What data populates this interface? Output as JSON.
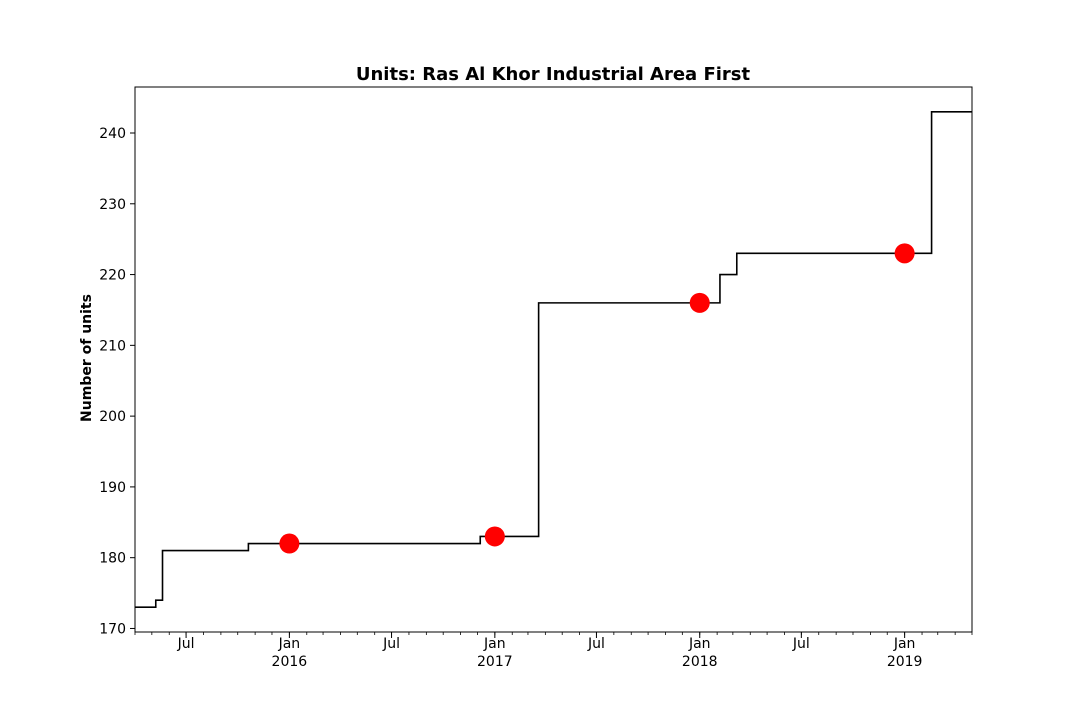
{
  "chart_data": {
    "type": "line",
    "title": "Units: Ras Al Khor Industrial Area First",
    "xlabel": "",
    "ylabel": "Number of units",
    "grid": false,
    "legend": "none",
    "xlim": [
      "2015-04-01",
      "2019-05-01"
    ],
    "ylim": [
      169.5,
      246.5
    ],
    "y_ticks": [
      170,
      180,
      190,
      200,
      210,
      220,
      230,
      240
    ],
    "x_ticks": [
      {
        "date": "2015-07-01",
        "label": "Jul",
        "sublabel": ""
      },
      {
        "date": "2016-01-01",
        "label": "Jan",
        "sublabel": "2016"
      },
      {
        "date": "2016-07-01",
        "label": "Jul",
        "sublabel": ""
      },
      {
        "date": "2017-01-01",
        "label": "Jan",
        "sublabel": "2017"
      },
      {
        "date": "2017-07-01",
        "label": "Jul",
        "sublabel": ""
      },
      {
        "date": "2018-01-01",
        "label": "Jan",
        "sublabel": "2018"
      },
      {
        "date": "2018-07-01",
        "label": "Jul",
        "sublabel": ""
      },
      {
        "date": "2019-01-01",
        "label": "Jan",
        "sublabel": "2019"
      }
    ],
    "series": [
      {
        "style": "step",
        "color": "#000000",
        "points": [
          {
            "x": "2015-04-01",
            "y": 173
          },
          {
            "x": "2015-05-08",
            "y": 174
          },
          {
            "x": "2015-05-20",
            "y": 181
          },
          {
            "x": "2015-10-20",
            "y": 182
          },
          {
            "x": "2016-12-06",
            "y": 183
          },
          {
            "x": "2017-03-20",
            "y": 216
          },
          {
            "x": "2018-02-06",
            "y": 220
          },
          {
            "x": "2018-03-08",
            "y": 223
          },
          {
            "x": "2019-02-18",
            "y": 243
          },
          {
            "x": "2019-05-01",
            "y": 243
          }
        ]
      },
      {
        "style": "markers",
        "color": "#ff0000",
        "points": [
          {
            "x": "2016-01-01",
            "y": 182
          },
          {
            "x": "2017-01-01",
            "y": 183
          },
          {
            "x": "2018-01-01",
            "y": 216
          },
          {
            "x": "2019-01-01",
            "y": 223
          }
        ]
      }
    ]
  }
}
